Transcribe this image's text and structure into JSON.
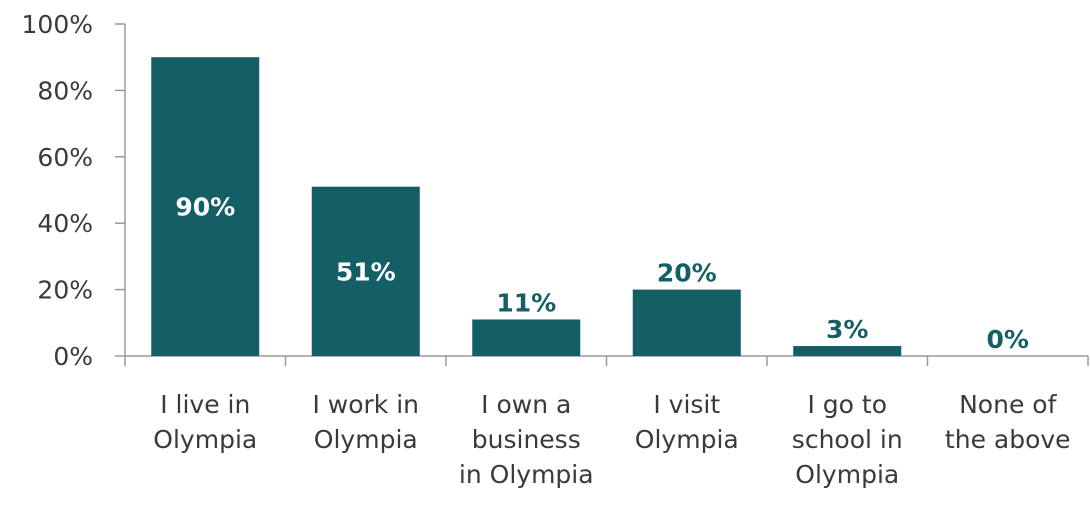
{
  "chart_data": {
    "type": "bar",
    "categories": [
      [
        "I live in",
        "Olympia"
      ],
      [
        "I work in",
        "Olympia"
      ],
      [
        "I own a",
        "business",
        "in Olympia"
      ],
      [
        "I visit",
        "Olympia"
      ],
      [
        "I go to",
        "school in",
        "Olympia"
      ],
      [
        "None of",
        "the above"
      ]
    ],
    "values": [
      90,
      51,
      11,
      20,
      3,
      0
    ],
    "data_labels": [
      "90%",
      "51%",
      "11%",
      "20%",
      "3%",
      "0%"
    ],
    "y_ticks": [
      "0%",
      "20%",
      "40%",
      "60%",
      "80%",
      "100%"
    ],
    "ylim": [
      0,
      100
    ],
    "grid": false,
    "colors": {
      "bar": "#145f66",
      "label_inside": "#ffffff",
      "label_outside": "#145f66"
    }
  }
}
